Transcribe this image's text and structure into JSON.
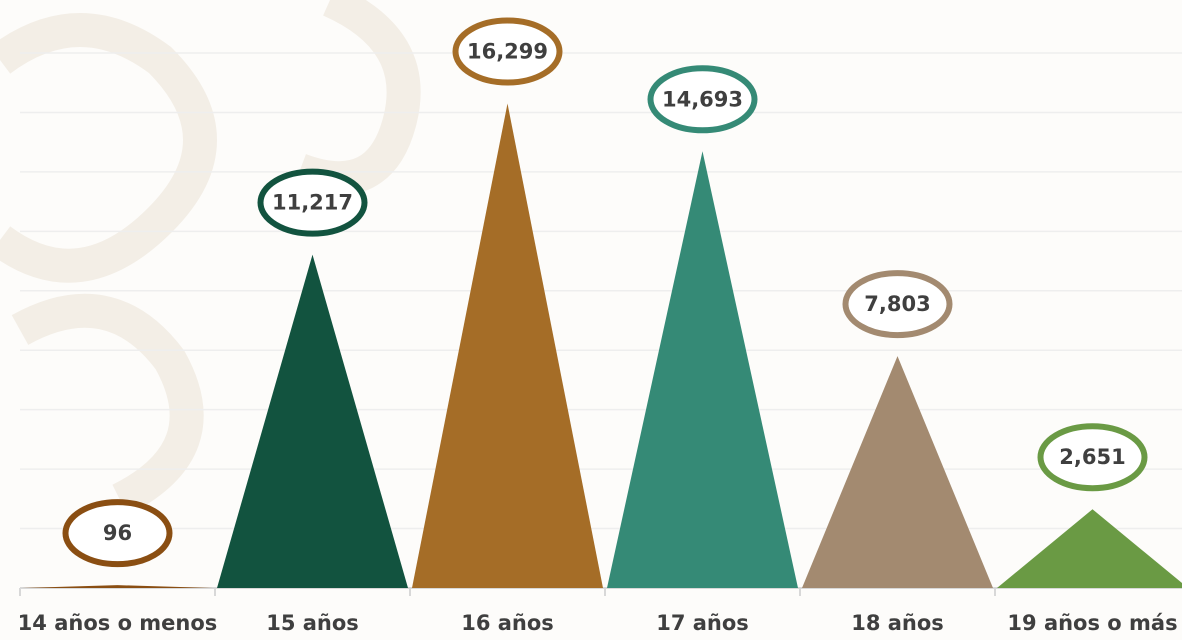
{
  "chart_data": {
    "type": "triangle-bar",
    "categories": [
      "14 años o menos",
      "15 años",
      "16 años",
      "17 años",
      "18 años",
      "19 años o más"
    ],
    "values": [
      96,
      11217,
      16299,
      14693,
      7803,
      2651
    ],
    "value_labels": [
      "96",
      "11,217",
      "16,299",
      "14,693",
      "7,803",
      "2,651"
    ],
    "colors": [
      "#8a4e12",
      "#12533f",
      "#a56d27",
      "#358a76",
      "#a38a70",
      "#6a9a44"
    ],
    "ylim": [
      0,
      18000
    ],
    "yticks": [
      0,
      2000,
      4000,
      6000,
      8000,
      10000,
      12000,
      14000,
      16000,
      18000
    ],
    "grid": true
  }
}
